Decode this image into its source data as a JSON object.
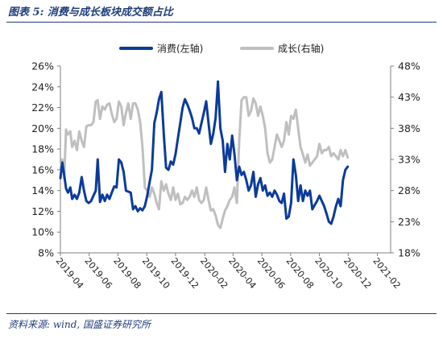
{
  "figure": {
    "title": "图表 5:  消费与成长板块成交额占比",
    "source": "资料来源:  wind,  国盛证券研究所"
  },
  "chart_data": {
    "type": "line",
    "title": "",
    "legend_placement": "top-center",
    "grid": false,
    "x_ticks": [
      "2019-04",
      "2019-06",
      "2019-08",
      "2019-10",
      "2019-12",
      "2020-02",
      "2020-04",
      "2020-06",
      "2020-08",
      "2020-10",
      "2020-12",
      "2021-02"
    ],
    "x_range": [
      "2019-04-01",
      "2021-03-01"
    ],
    "y_left": {
      "ticks": [
        "8%",
        "10%",
        "12%",
        "14%",
        "16%",
        "18%",
        "20%",
        "22%",
        "24%",
        "26%"
      ],
      "range": [
        8,
        26
      ]
    },
    "y_right": {
      "ticks": [
        "18%",
        "23%",
        "28%",
        "33%",
        "38%",
        "43%",
        "48%"
      ],
      "range": [
        18,
        48
      ]
    },
    "series": [
      {
        "name": "消费(左轴)",
        "axis": "left",
        "color": "#0b3b9a",
        "points": [
          [
            "2019-04-01",
            15.2
          ],
          [
            "2019-04-05",
            16.7
          ],
          [
            "2019-04-09",
            15.5
          ],
          [
            "2019-04-13",
            14.2
          ],
          [
            "2019-04-17",
            13.8
          ],
          [
            "2019-04-22",
            14.3
          ],
          [
            "2019-04-26",
            13.2
          ],
          [
            "2019-05-01",
            13.6
          ],
          [
            "2019-05-06",
            13.2
          ],
          [
            "2019-05-11",
            13.8
          ],
          [
            "2019-05-16",
            15.3
          ],
          [
            "2019-05-21",
            14.0
          ],
          [
            "2019-05-26",
            13.0
          ],
          [
            "2019-05-31",
            12.8
          ],
          [
            "2019-06-05",
            13.0
          ],
          [
            "2019-06-10",
            13.5
          ],
          [
            "2019-06-15",
            14.0
          ],
          [
            "2019-06-19",
            17.0
          ],
          [
            "2019-06-24",
            12.9
          ],
          [
            "2019-06-29",
            13.6
          ],
          [
            "2019-07-04",
            13.0
          ],
          [
            "2019-07-09",
            13.6
          ],
          [
            "2019-07-14",
            13.2
          ],
          [
            "2019-07-19",
            13.8
          ],
          [
            "2019-07-24",
            14.4
          ],
          [
            "2019-07-29",
            14.3
          ],
          [
            "2019-08-03",
            17.0
          ],
          [
            "2019-08-08",
            16.7
          ],
          [
            "2019-08-13",
            15.8
          ],
          [
            "2019-08-18",
            14.0
          ],
          [
            "2019-08-23",
            13.9
          ],
          [
            "2019-08-28",
            13.8
          ],
          [
            "2019-09-02",
            12.2
          ],
          [
            "2019-09-07",
            12.5
          ],
          [
            "2019-09-12",
            12.0
          ],
          [
            "2019-09-17",
            12.3
          ],
          [
            "2019-09-22",
            12.1
          ],
          [
            "2019-09-27",
            12.5
          ],
          [
            "2019-10-02",
            13.5
          ],
          [
            "2019-10-07",
            14.8
          ],
          [
            "2019-10-12",
            16.0
          ],
          [
            "2019-10-17",
            20.5
          ],
          [
            "2019-10-22",
            21.5
          ],
          [
            "2019-10-27",
            22.8
          ],
          [
            "2019-11-01",
            23.5
          ],
          [
            "2019-11-06",
            19.5
          ],
          [
            "2019-11-11",
            16.2
          ],
          [
            "2019-11-16",
            16.0
          ],
          [
            "2019-11-21",
            16.8
          ],
          [
            "2019-11-26",
            16.5
          ],
          [
            "2019-12-01",
            17.5
          ],
          [
            "2019-12-06",
            19.0
          ],
          [
            "2019-12-11",
            20.5
          ],
          [
            "2019-12-16",
            22.0
          ],
          [
            "2019-12-21",
            22.8
          ],
          [
            "2019-12-26",
            22.3
          ],
          [
            "2019-12-31",
            21.7
          ],
          [
            "2020-01-05",
            21.0
          ],
          [
            "2020-01-10",
            20.0
          ],
          [
            "2020-01-15",
            20.0
          ],
          [
            "2020-01-20",
            19.5
          ],
          [
            "2020-01-25",
            20.5
          ],
          [
            "2020-01-30",
            21.5
          ],
          [
            "2020-02-04",
            22.6
          ],
          [
            "2020-02-09",
            20.5
          ],
          [
            "2020-02-14",
            18.5
          ],
          [
            "2020-02-19",
            19.5
          ],
          [
            "2020-02-24",
            21.0
          ],
          [
            "2020-02-29",
            24.5
          ],
          [
            "2020-03-05",
            20.0
          ],
          [
            "2020-03-10",
            18.8
          ],
          [
            "2020-03-15",
            15.8
          ],
          [
            "2020-03-20",
            18.5
          ],
          [
            "2020-03-25",
            17.0
          ],
          [
            "2020-03-30",
            19.3
          ],
          [
            "2020-04-04",
            17.5
          ],
          [
            "2020-04-09",
            15.0
          ],
          [
            "2020-04-14",
            16.3
          ],
          [
            "2020-04-19",
            15.5
          ],
          [
            "2020-04-24",
            15.8
          ],
          [
            "2020-04-29",
            15.0
          ],
          [
            "2020-05-04",
            14.0
          ],
          [
            "2020-05-09",
            14.5
          ],
          [
            "2020-05-14",
            15.8
          ],
          [
            "2020-05-19",
            13.4
          ],
          [
            "2020-05-24",
            14.6
          ],
          [
            "2020-05-29",
            15.2
          ],
          [
            "2020-06-03",
            14.0
          ],
          [
            "2020-06-08",
            14.5
          ],
          [
            "2020-06-13",
            13.5
          ],
          [
            "2020-06-18",
            13.8
          ],
          [
            "2020-06-23",
            13.4
          ],
          [
            "2020-06-28",
            14.0
          ],
          [
            "2020-07-03",
            13.6
          ],
          [
            "2020-07-08",
            13.0
          ],
          [
            "2020-07-13",
            12.8
          ],
          [
            "2020-07-18",
            13.7
          ],
          [
            "2020-07-23",
            11.3
          ],
          [
            "2020-07-28",
            11.5
          ],
          [
            "2020-08-02",
            12.8
          ],
          [
            "2020-08-07",
            17.0
          ],
          [
            "2020-08-12",
            15.5
          ],
          [
            "2020-08-17",
            13.0
          ],
          [
            "2020-08-22",
            14.5
          ],
          [
            "2020-08-27",
            13.0
          ],
          [
            "2020-09-01",
            14.0
          ],
          [
            "2020-09-06",
            13.5
          ],
          [
            "2020-09-11",
            14.0
          ],
          [
            "2020-09-16",
            12.2
          ],
          [
            "2020-09-21",
            12.6
          ],
          [
            "2020-09-26",
            13.0
          ],
          [
            "2020-10-01",
            13.5
          ],
          [
            "2020-10-06",
            13.0
          ],
          [
            "2020-10-11",
            12.5
          ],
          [
            "2020-10-16",
            11.8
          ],
          [
            "2020-10-21",
            11.0
          ],
          [
            "2020-10-26",
            10.8
          ],
          [
            "2020-10-31",
            11.5
          ],
          [
            "2020-11-05",
            12.5
          ],
          [
            "2020-11-10",
            13.2
          ],
          [
            "2020-11-15",
            12.5
          ],
          [
            "2020-11-20",
            15.0
          ],
          [
            "2020-11-25",
            16.0
          ],
          [
            "2020-11-30",
            16.3
          ]
        ]
      },
      {
        "name": "成长(右轴)",
        "axis": "right",
        "color": "#bfbfbf",
        "points": [
          [
            "2019-04-01",
            31.5
          ],
          [
            "2019-04-05",
            33.0
          ],
          [
            "2019-04-09",
            30.0
          ],
          [
            "2019-04-13",
            37.8
          ],
          [
            "2019-04-17",
            37.0
          ],
          [
            "2019-04-22",
            37.5
          ],
          [
            "2019-04-26",
            35.0
          ],
          [
            "2019-05-01",
            36.0
          ],
          [
            "2019-05-06",
            34.5
          ],
          [
            "2019-05-11",
            37.5
          ],
          [
            "2019-05-16",
            36.0
          ],
          [
            "2019-05-21",
            35.0
          ],
          [
            "2019-05-26",
            38.3
          ],
          [
            "2019-05-31",
            38.5
          ],
          [
            "2019-06-05",
            38.5
          ],
          [
            "2019-06-10",
            39.0
          ],
          [
            "2019-06-15",
            42.3
          ],
          [
            "2019-06-19",
            42.5
          ],
          [
            "2019-06-24",
            39.5
          ],
          [
            "2019-06-29",
            41.5
          ],
          [
            "2019-07-04",
            41.0
          ],
          [
            "2019-07-09",
            41.8
          ],
          [
            "2019-07-14",
            42.0
          ],
          [
            "2019-07-19",
            40.3
          ],
          [
            "2019-07-24",
            39.0
          ],
          [
            "2019-07-29",
            39.5
          ],
          [
            "2019-08-03",
            42.3
          ],
          [
            "2019-08-08",
            41.5
          ],
          [
            "2019-08-13",
            38.5
          ],
          [
            "2019-08-18",
            40.5
          ],
          [
            "2019-08-23",
            42.0
          ],
          [
            "2019-08-28",
            39.5
          ],
          [
            "2019-09-02",
            42.0
          ],
          [
            "2019-09-07",
            42.0
          ],
          [
            "2019-09-12",
            41.0
          ],
          [
            "2019-09-17",
            39.0
          ],
          [
            "2019-09-22",
            35.0
          ],
          [
            "2019-09-27",
            28.5
          ],
          [
            "2019-10-02",
            28.0
          ],
          [
            "2019-10-07",
            27.0
          ],
          [
            "2019-10-12",
            28.5
          ],
          [
            "2019-10-17",
            27.5
          ],
          [
            "2019-10-22",
            26.0
          ],
          [
            "2019-10-27",
            25.0
          ],
          [
            "2019-11-01",
            29.5
          ],
          [
            "2019-11-06",
            28.0
          ],
          [
            "2019-11-11",
            29.0
          ],
          [
            "2019-11-16",
            27.5
          ],
          [
            "2019-11-21",
            26.5
          ],
          [
            "2019-11-26",
            28.5
          ],
          [
            "2019-12-01",
            26.5
          ],
          [
            "2019-12-06",
            27.5
          ],
          [
            "2019-12-11",
            25.8
          ],
          [
            "2019-12-16",
            26.0
          ],
          [
            "2019-12-21",
            27.0
          ],
          [
            "2019-12-26",
            26.5
          ],
          [
            "2019-12-31",
            27.0
          ],
          [
            "2020-01-05",
            28.0
          ],
          [
            "2020-01-10",
            27.0
          ],
          [
            "2020-01-15",
            28.5
          ],
          [
            "2020-01-20",
            26.5
          ],
          [
            "2020-01-25",
            26.0
          ],
          [
            "2020-01-30",
            26.5
          ],
          [
            "2020-02-04",
            28.5
          ],
          [
            "2020-02-09",
            26.5
          ],
          [
            "2020-02-14",
            24.8
          ],
          [
            "2020-02-19",
            25.0
          ],
          [
            "2020-02-24",
            24.0
          ],
          [
            "2020-02-29",
            22.5
          ],
          [
            "2020-03-05",
            22.0
          ],
          [
            "2020-03-10",
            23.5
          ],
          [
            "2020-03-15",
            24.8
          ],
          [
            "2020-03-20",
            25.5
          ],
          [
            "2020-03-25",
            26.5
          ],
          [
            "2020-03-30",
            27.0
          ],
          [
            "2020-04-04",
            28.5
          ],
          [
            "2020-04-09",
            26.0
          ],
          [
            "2020-04-14",
            36.0
          ],
          [
            "2020-04-19",
            42.5
          ],
          [
            "2020-04-24",
            43.0
          ],
          [
            "2020-04-29",
            43.0
          ],
          [
            "2020-05-04",
            40.0
          ],
          [
            "2020-05-09",
            40.8
          ],
          [
            "2020-05-14",
            42.8
          ],
          [
            "2020-05-19",
            42.0
          ],
          [
            "2020-05-24",
            40.0
          ],
          [
            "2020-05-29",
            41.5
          ],
          [
            "2020-06-03",
            40.0
          ],
          [
            "2020-06-08",
            38.0
          ],
          [
            "2020-06-13",
            34.0
          ],
          [
            "2020-06-18",
            32.5
          ],
          [
            "2020-06-23",
            33.0
          ],
          [
            "2020-06-28",
            35.0
          ],
          [
            "2020-07-03",
            37.0
          ],
          [
            "2020-07-08",
            36.0
          ],
          [
            "2020-07-13",
            35.0
          ],
          [
            "2020-07-18",
            36.0
          ],
          [
            "2020-07-23",
            39.0
          ],
          [
            "2020-07-28",
            37.0
          ],
          [
            "2020-08-02",
            40.0
          ],
          [
            "2020-08-07",
            39.5
          ],
          [
            "2020-08-12",
            41.0
          ],
          [
            "2020-08-17",
            38.0
          ],
          [
            "2020-08-22",
            35.0
          ],
          [
            "2020-08-27",
            33.8
          ],
          [
            "2020-09-01",
            32.5
          ],
          [
            "2020-09-06",
            33.8
          ],
          [
            "2020-09-11",
            32.0
          ],
          [
            "2020-09-16",
            32.5
          ],
          [
            "2020-09-21",
            33.0
          ],
          [
            "2020-09-26",
            33.5
          ],
          [
            "2020-10-01",
            35.5
          ],
          [
            "2020-10-06",
            34.0
          ],
          [
            "2020-10-11",
            34.5
          ],
          [
            "2020-10-16",
            34.5
          ],
          [
            "2020-10-21",
            35.0
          ],
          [
            "2020-10-26",
            33.5
          ],
          [
            "2020-10-31",
            34.0
          ],
          [
            "2020-11-05",
            33.5
          ],
          [
            "2020-11-10",
            33.0
          ],
          [
            "2020-11-15",
            34.5
          ],
          [
            "2020-11-20",
            33.5
          ],
          [
            "2020-11-25",
            34.5
          ],
          [
            "2020-11-30",
            33.3
          ]
        ]
      }
    ]
  }
}
